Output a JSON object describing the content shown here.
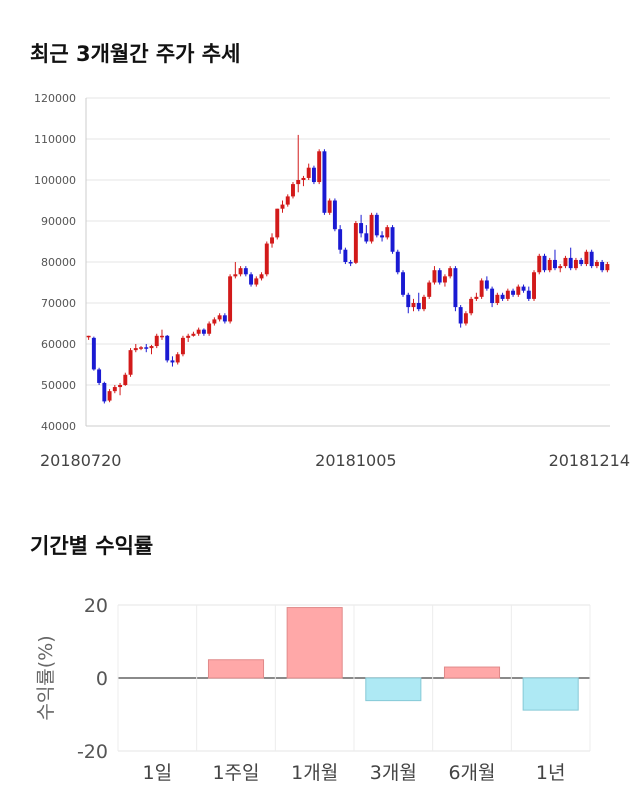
{
  "sections": {
    "price_title": "최근 3개월간 주가 추세",
    "return_title": "기간별 수익률"
  },
  "chart_data": [
    {
      "type": "candlestick",
      "title": "최근 3개월간 주가 추세",
      "ylim": [
        40000,
        120000
      ],
      "y_ticks": [
        40000,
        50000,
        60000,
        70000,
        80000,
        90000,
        100000,
        110000,
        120000
      ],
      "x_tick_labels": [
        {
          "label": "20180720",
          "index": 0
        },
        {
          "label": "20181005",
          "index": 51
        },
        {
          "label": "20181214",
          "index": 99
        }
      ],
      "grid": true,
      "up_color": "#d21a1a",
      "down_color": "#1a1ad2",
      "ohlc": [
        [
          62000,
          62000,
          61000,
          62000
        ],
        [
          61500,
          61800,
          53500,
          53800
        ],
        [
          53800,
          54200,
          50000,
          50500
        ],
        [
          50500,
          50800,
          45500,
          46000
        ],
        [
          46200,
          49000,
          45800,
          48500
        ],
        [
          48500,
          50000,
          48000,
          49500
        ],
        [
          49500,
          50500,
          47500,
          50000
        ],
        [
          50000,
          53000,
          49800,
          52500
        ],
        [
          52500,
          59000,
          52000,
          58500
        ],
        [
          58500,
          60000,
          58000,
          59000
        ],
        [
          59000,
          59500,
          58500,
          59200
        ],
        [
          59200,
          60000,
          58000,
          59000
        ],
        [
          59000,
          59800,
          57500,
          59500
        ],
        [
          59500,
          62500,
          59000,
          62000
        ],
        [
          62000,
          63500,
          61000,
          62000
        ],
        [
          62000,
          62200,
          55500,
          56000
        ],
        [
          56000,
          57000,
          54500,
          55500
        ],
        [
          55500,
          58000,
          55000,
          57500
        ],
        [
          57500,
          62000,
          57000,
          61500
        ],
        [
          61500,
          62500,
          60500,
          62000
        ],
        [
          62000,
          63000,
          61800,
          62500
        ],
        [
          62500,
          64000,
          62000,
          63500
        ],
        [
          63500,
          63800,
          62000,
          62500
        ],
        [
          62500,
          65500,
          62000,
          65000
        ],
        [
          65000,
          66500,
          64500,
          66000
        ],
        [
          66000,
          67500,
          65500,
          67000
        ],
        [
          67000,
          67500,
          65000,
          65500
        ],
        [
          65500,
          77000,
          65000,
          76500
        ],
        [
          76500,
          80000,
          76000,
          77000
        ],
        [
          77000,
          79000,
          76500,
          78500
        ],
        [
          78500,
          79000,
          76500,
          77000
        ],
        [
          77000,
          77500,
          74000,
          74500
        ],
        [
          74500,
          76500,
          74000,
          76000
        ],
        [
          76000,
          77500,
          75500,
          77000
        ],
        [
          77000,
          85000,
          76500,
          84500
        ],
        [
          84500,
          87000,
          83500,
          86000
        ],
        [
          86000,
          93000,
          85500,
          93000
        ],
        [
          93000,
          95000,
          92000,
          94000
        ],
        [
          94000,
          96500,
          93500,
          96000
        ],
        [
          96000,
          99500,
          95500,
          99000
        ],
        [
          99000,
          111000,
          97000,
          100000
        ],
        [
          100000,
          101000,
          98500,
          100500
        ],
        [
          100500,
          104000,
          100000,
          103000
        ],
        [
          103000,
          103500,
          99000,
          99500
        ],
        [
          99500,
          107500,
          99000,
          107000
        ],
        [
          107000,
          107500,
          91500,
          92000
        ],
        [
          92000,
          95500,
          91500,
          95000
        ],
        [
          95000,
          95500,
          87500,
          88000
        ],
        [
          88000,
          89000,
          82000,
          83000
        ],
        [
          83000,
          83500,
          79500,
          80000
        ],
        [
          80000,
          80500,
          79000,
          79800
        ],
        [
          79800,
          90000,
          79500,
          89500
        ],
        [
          89500,
          91500,
          86000,
          87000
        ],
        [
          87000,
          89000,
          84500,
          85000
        ],
        [
          85000,
          92000,
          84500,
          91500
        ],
        [
          91500,
          92000,
          86000,
          86500
        ],
        [
          86500,
          87500,
          85000,
          86000
        ],
        [
          86000,
          89000,
          85500,
          88500
        ],
        [
          88500,
          89000,
          82000,
          82500
        ],
        [
          82500,
          83000,
          77000,
          77500
        ],
        [
          77500,
          78000,
          71500,
          72000
        ],
        [
          72000,
          72500,
          67500,
          69000
        ],
        [
          69000,
          71000,
          68000,
          70000
        ],
        [
          70000,
          72500,
          68000,
          68500
        ],
        [
          68500,
          72000,
          68000,
          71500
        ],
        [
          71500,
          75500,
          71000,
          75000
        ],
        [
          75000,
          79000,
          74500,
          78000
        ],
        [
          78000,
          78500,
          74500,
          75000
        ],
        [
          75000,
          77000,
          74000,
          76500
        ],
        [
          76500,
          79000,
          76000,
          78500
        ],
        [
          78500,
          79000,
          68000,
          69000
        ],
        [
          69000,
          69500,
          64000,
          65000
        ],
        [
          65000,
          68000,
          64500,
          67500
        ],
        [
          67500,
          71500,
          67000,
          71000
        ],
        [
          71000,
          72500,
          70500,
          71500
        ],
        [
          71500,
          76000,
          71000,
          75500
        ],
        [
          75500,
          76500,
          73000,
          73500
        ],
        [
          73500,
          74000,
          69000,
          70000
        ],
        [
          70000,
          72500,
          69500,
          72000
        ],
        [
          72000,
          72500,
          70500,
          71000
        ],
        [
          71000,
          73500,
          70500,
          73000
        ],
        [
          73000,
          73500,
          71500,
          72000
        ],
        [
          72000,
          74500,
          71500,
          74000
        ],
        [
          74000,
          74500,
          72500,
          73000
        ],
        [
          73000,
          74000,
          70500,
          71000
        ],
        [
          71000,
          78000,
          70500,
          77500
        ],
        [
          77500,
          82000,
          77000,
          81500
        ],
        [
          81500,
          82000,
          77500,
          78000
        ],
        [
          78000,
          81000,
          77500,
          80500
        ],
        [
          80500,
          83000,
          78000,
          78500
        ],
        [
          78500,
          79500,
          77500,
          79000
        ],
        [
          79000,
          81500,
          78500,
          81000
        ],
        [
          81000,
          83500,
          78000,
          78500
        ],
        [
          78500,
          81000,
          78000,
          80500
        ],
        [
          80500,
          81000,
          79000,
          79500
        ],
        [
          79500,
          83000,
          79000,
          82500
        ],
        [
          82500,
          83000,
          78500,
          79000
        ],
        [
          79000,
          80500,
          78500,
          80000
        ],
        [
          80000,
          80500,
          77500,
          78000
        ],
        [
          78000,
          80000,
          77500,
          79500
        ]
      ]
    },
    {
      "type": "bar",
      "title": "기간별 수익률",
      "categories": [
        "1일",
        "1주일",
        "1개월",
        "3개월",
        "6개월",
        "1년"
      ],
      "values": [
        0,
        5,
        19.3,
        -6.2,
        3,
        -8.8
      ],
      "ylabel": "수익률(%)",
      "ylim": [
        -20,
        20
      ],
      "y_ticks": [
        -20,
        0,
        20
      ],
      "grid": true,
      "positive_color": "#ffa8a8",
      "negative_color": "#aee9f4"
    }
  ]
}
